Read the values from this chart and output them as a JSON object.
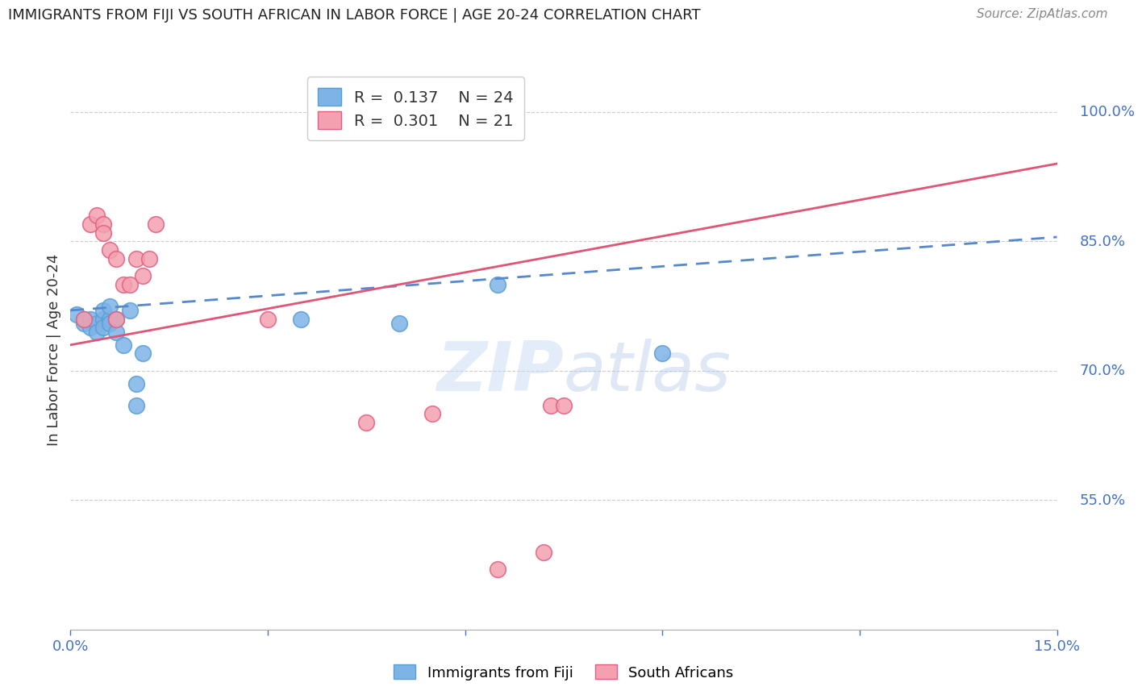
{
  "title": "IMMIGRANTS FROM FIJI VS SOUTH AFRICAN IN LABOR FORCE | AGE 20-24 CORRELATION CHART",
  "source": "Source: ZipAtlas.com",
  "ylabel_label": "In Labor Force | Age 20-24",
  "xlim": [
    0.0,
    0.15
  ],
  "ylim": [
    0.4,
    1.05
  ],
  "xticks": [
    0.0,
    0.03,
    0.06,
    0.09,
    0.12,
    0.15
  ],
  "xtick_labels": [
    "0.0%",
    "",
    "",
    "",
    "",
    "15.0%"
  ],
  "ytick_positions": [
    0.55,
    0.7,
    0.85,
    1.0
  ],
  "ytick_labels": [
    "55.0%",
    "70.0%",
    "85.0%",
    "100.0%"
  ],
  "grid_color": "#cccccc",
  "background_color": "#ffffff",
  "fiji_color": "#7eb3e8",
  "fiji_edge_color": "#5a9fd4",
  "sa_color": "#f4a0b0",
  "sa_edge_color": "#e06080",
  "fiji_line_color": "#5588cc",
  "sa_line_color": "#e05575",
  "fiji_R": "0.137",
  "fiji_N": "24",
  "sa_R": "0.301",
  "sa_N": "21",
  "watermark": "ZIPatlas",
  "fiji_x": [
    0.001,
    0.002,
    0.002,
    0.003,
    0.003,
    0.004,
    0.004,
    0.005,
    0.005,
    0.005,
    0.006,
    0.006,
    0.006,
    0.007,
    0.007,
    0.008,
    0.009,
    0.01,
    0.01,
    0.011,
    0.035,
    0.05,
    0.065,
    0.09
  ],
  "fiji_y": [
    0.765,
    0.76,
    0.755,
    0.76,
    0.75,
    0.755,
    0.745,
    0.76,
    0.75,
    0.77,
    0.76,
    0.775,
    0.755,
    0.76,
    0.745,
    0.73,
    0.77,
    0.685,
    0.66,
    0.72,
    0.76,
    0.755,
    0.8,
    0.72
  ],
  "sa_x": [
    0.002,
    0.003,
    0.004,
    0.005,
    0.005,
    0.006,
    0.007,
    0.007,
    0.008,
    0.009,
    0.01,
    0.011,
    0.012,
    0.013,
    0.03,
    0.045,
    0.055,
    0.065,
    0.073,
    0.072,
    0.075
  ],
  "sa_y": [
    0.76,
    0.87,
    0.88,
    0.87,
    0.86,
    0.84,
    0.83,
    0.76,
    0.8,
    0.8,
    0.83,
    0.81,
    0.83,
    0.87,
    0.76,
    0.64,
    0.65,
    0.47,
    0.66,
    0.49,
    0.66
  ]
}
